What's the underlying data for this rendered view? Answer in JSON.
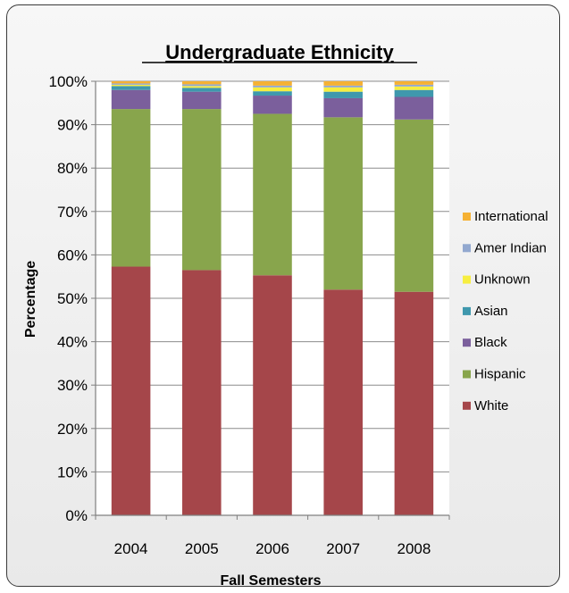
{
  "chart_data": {
    "type": "bar",
    "stacked": true,
    "percent": true,
    "title": "Undergraduate Ethnicity",
    "xlabel": "Fall Semesters",
    "ylabel": "Percentage",
    "ylim": [
      0,
      100
    ],
    "y_ticks": [
      "0%",
      "10%",
      "20%",
      "30%",
      "40%",
      "50%",
      "60%",
      "70%",
      "80%",
      "90%",
      "100%"
    ],
    "grid": true,
    "legend_position": "right",
    "categories": [
      "2004",
      "2005",
      "2006",
      "2007",
      "2008"
    ],
    "series": [
      {
        "name": "White",
        "color": "#a5464a",
        "values": [
          57.3,
          56.5,
          55.3,
          52.0,
          51.5
        ]
      },
      {
        "name": "Hispanic",
        "color": "#88a54c",
        "values": [
          36.3,
          37.1,
          37.2,
          39.7,
          39.7
        ]
      },
      {
        "name": "Black",
        "color": "#7b5f9c",
        "values": [
          4.4,
          4.0,
          4.2,
          4.4,
          5.2
        ]
      },
      {
        "name": "Asian",
        "color": "#3f98ad",
        "values": [
          0.9,
          0.9,
          1.0,
          1.5,
          1.6
        ]
      },
      {
        "name": "Unknown",
        "color": "#f7ee40",
        "values": [
          0.3,
          0.4,
          0.9,
          1.0,
          0.8
        ]
      },
      {
        "name": "Amer Indian",
        "color": "#92a8cf",
        "values": [
          0.3,
          0.4,
          0.4,
          0.4,
          0.4
        ]
      },
      {
        "name": "International",
        "color": "#f5b134",
        "values": [
          0.5,
          0.7,
          1.0,
          1.0,
          0.8
        ]
      }
    ],
    "legend_order": [
      "International",
      "Amer Indian",
      "Unknown",
      "Asian",
      "Black",
      "Hispanic",
      "White"
    ]
  }
}
